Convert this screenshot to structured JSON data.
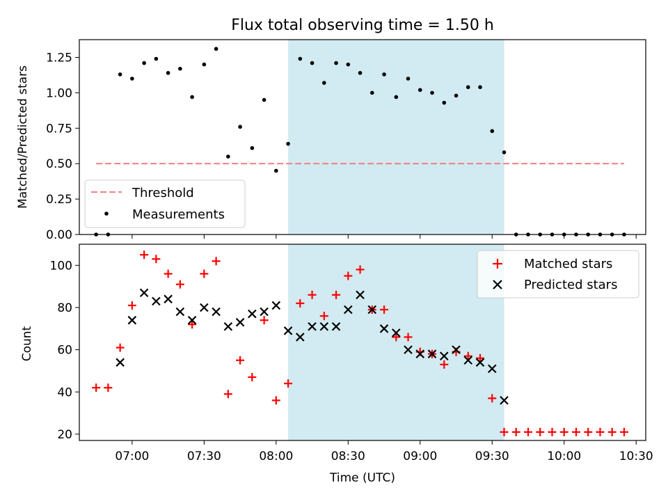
{
  "chart_data": [
    {
      "type": "scatter",
      "title": "Flux total observing time = 1.50 h",
      "ylabel": "Matched/Predicted stars",
      "xlabel": "",
      "ylim": [
        0,
        1.375
      ],
      "yticks": [
        "0.00",
        "0.25",
        "0.50",
        "0.75",
        "1.00",
        "1.25"
      ],
      "legend_position": "lower-left",
      "shaded_region": {
        "x_start": "08:05",
        "x_end": "09:35",
        "color": "#add8e6"
      },
      "threshold": {
        "name": "Threshold",
        "value": 0.5,
        "x_start": "06:45",
        "x_end": "10:25",
        "color": "#f08080"
      },
      "series": [
        {
          "name": "Measurements",
          "color": "#000000",
          "points": [
            [
              "06:45",
              0.0
            ],
            [
              "06:50",
              0.0
            ],
            [
              "06:55",
              1.13
            ],
            [
              "07:00",
              1.1
            ],
            [
              "07:05",
              1.21
            ],
            [
              "07:10",
              1.24
            ],
            [
              "07:15",
              1.14
            ],
            [
              "07:20",
              1.17
            ],
            [
              "07:25",
              0.97
            ],
            [
              "07:30",
              1.2
            ],
            [
              "07:35",
              1.31
            ],
            [
              "07:40",
              0.55
            ],
            [
              "07:45",
              0.76
            ],
            [
              "07:50",
              0.61
            ],
            [
              "07:55",
              0.95
            ],
            [
              "08:00",
              0.45
            ],
            [
              "08:05",
              0.64
            ],
            [
              "08:10",
              1.24
            ],
            [
              "08:15",
              1.21
            ],
            [
              "08:20",
              1.07
            ],
            [
              "08:25",
              1.21
            ],
            [
              "08:30",
              1.2
            ],
            [
              "08:35",
              1.14
            ],
            [
              "08:40",
              1.0
            ],
            [
              "08:45",
              1.13
            ],
            [
              "08:50",
              0.97
            ],
            [
              "08:55",
              1.1
            ],
            [
              "09:00",
              1.02
            ],
            [
              "09:05",
              1.0
            ],
            [
              "09:10",
              0.93
            ],
            [
              "09:15",
              0.98
            ],
            [
              "09:20",
              1.04
            ],
            [
              "09:25",
              1.04
            ],
            [
              "09:30",
              0.73
            ],
            [
              "09:35",
              0.58
            ],
            [
              "09:40",
              0.0
            ],
            [
              "09:45",
              0.0
            ],
            [
              "09:50",
              0.0
            ],
            [
              "09:55",
              0.0
            ],
            [
              "10:00",
              0.0
            ],
            [
              "10:05",
              0.0
            ],
            [
              "10:10",
              0.0
            ],
            [
              "10:15",
              0.0
            ],
            [
              "10:20",
              0.0
            ],
            [
              "10:25",
              0.0
            ]
          ]
        }
      ]
    },
    {
      "type": "scatter",
      "title": "",
      "xlabel": "Time (UTC)",
      "ylabel": "Count",
      "ylim": [
        17,
        110
      ],
      "yticks": [
        "20",
        "40",
        "60",
        "80",
        "100"
      ],
      "xticks": [
        "07:00",
        "07:30",
        "08:00",
        "08:30",
        "09:00",
        "09:30",
        "10:00",
        "10:30"
      ],
      "xlim": [
        "06:38",
        "10:34"
      ],
      "legend_position": "top-right",
      "shaded_region": {
        "x_start": "08:05",
        "x_end": "09:35",
        "color": "#add8e6"
      },
      "series": [
        {
          "name": "Matched stars",
          "marker": "plus",
          "color": "#ff0000",
          "points": [
            [
              "06:45",
              42
            ],
            [
              "06:50",
              42
            ],
            [
              "06:55",
              61
            ],
            [
              "07:00",
              81
            ],
            [
              "07:05",
              105
            ],
            [
              "07:10",
              103
            ],
            [
              "07:15",
              96
            ],
            [
              "07:20",
              91
            ],
            [
              "07:25",
              72
            ],
            [
              "07:30",
              96
            ],
            [
              "07:35",
              102
            ],
            [
              "07:40",
              39
            ],
            [
              "07:45",
              55
            ],
            [
              "07:50",
              47
            ],
            [
              "07:55",
              74
            ],
            [
              "08:00",
              36
            ],
            [
              "08:05",
              44
            ],
            [
              "08:10",
              82
            ],
            [
              "08:15",
              86
            ],
            [
              "08:20",
              76
            ],
            [
              "08:25",
              86
            ],
            [
              "08:30",
              95
            ],
            [
              "08:35",
              98
            ],
            [
              "08:40",
              79
            ],
            [
              "08:45",
              79
            ],
            [
              "08:50",
              66
            ],
            [
              "08:55",
              66
            ],
            [
              "09:00",
              59
            ],
            [
              "09:05",
              58
            ],
            [
              "09:10",
              53
            ],
            [
              "09:15",
              59
            ],
            [
              "09:20",
              57
            ],
            [
              "09:25",
              56
            ],
            [
              "09:30",
              37
            ],
            [
              "09:35",
              21
            ],
            [
              "09:40",
              21
            ],
            [
              "09:45",
              21
            ],
            [
              "09:50",
              21
            ],
            [
              "09:55",
              21
            ],
            [
              "10:00",
              21
            ],
            [
              "10:05",
              21
            ],
            [
              "10:10",
              21
            ],
            [
              "10:15",
              21
            ],
            [
              "10:20",
              21
            ],
            [
              "10:25",
              21
            ]
          ]
        },
        {
          "name": "Predicted stars",
          "marker": "x",
          "color": "#000000",
          "points": [
            [
              "06:55",
              54
            ],
            [
              "07:00",
              74
            ],
            [
              "07:05",
              87
            ],
            [
              "07:10",
              83
            ],
            [
              "07:15",
              84
            ],
            [
              "07:20",
              78
            ],
            [
              "07:25",
              74
            ],
            [
              "07:30",
              80
            ],
            [
              "07:35",
              78
            ],
            [
              "07:40",
              71
            ],
            [
              "07:45",
              73
            ],
            [
              "07:50",
              77
            ],
            [
              "07:55",
              78
            ],
            [
              "08:00",
              81
            ],
            [
              "08:05",
              69
            ],
            [
              "08:10",
              66
            ],
            [
              "08:15",
              71
            ],
            [
              "08:20",
              71
            ],
            [
              "08:25",
              71
            ],
            [
              "08:30",
              79
            ],
            [
              "08:35",
              86
            ],
            [
              "08:40",
              79
            ],
            [
              "08:45",
              70
            ],
            [
              "08:50",
              68
            ],
            [
              "08:55",
              60
            ],
            [
              "09:00",
              58
            ],
            [
              "09:05",
              58
            ],
            [
              "09:10",
              57
            ],
            [
              "09:15",
              60
            ],
            [
              "09:20",
              55
            ],
            [
              "09:25",
              54
            ],
            [
              "09:30",
              51
            ],
            [
              "09:35",
              36
            ]
          ]
        }
      ]
    }
  ]
}
